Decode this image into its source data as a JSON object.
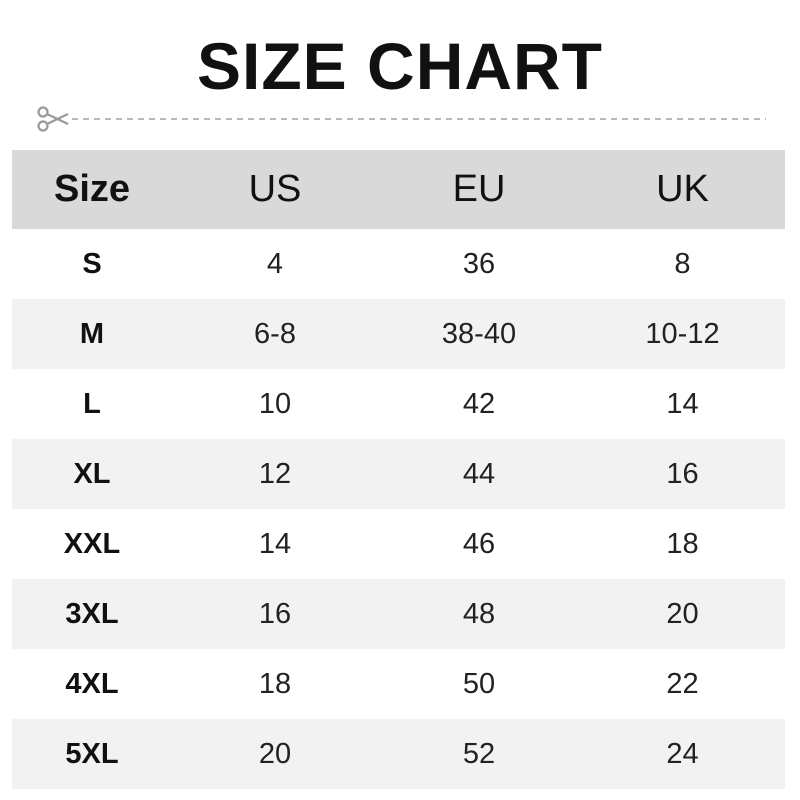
{
  "title": "SIZE CHART",
  "cut_icon": "scissors-icon",
  "colors": {
    "header_bg": "#d9d9d9",
    "alt_row_bg": "#f2f2f2",
    "dash": "#a0a0a0"
  },
  "table": {
    "headers": [
      "Size",
      "US",
      "EU",
      "UK"
    ],
    "rows": [
      [
        "S",
        "4",
        "36",
        "8"
      ],
      [
        "M",
        "6-8",
        "38-40",
        "10-12"
      ],
      [
        "L",
        "10",
        "42",
        "14"
      ],
      [
        "XL",
        "12",
        "44",
        "16"
      ],
      [
        "XXL",
        "14",
        "46",
        "18"
      ],
      [
        "3XL",
        "16",
        "48",
        "20"
      ],
      [
        "4XL",
        "18",
        "50",
        "22"
      ],
      [
        "5XL",
        "20",
        "52",
        "24"
      ]
    ]
  }
}
